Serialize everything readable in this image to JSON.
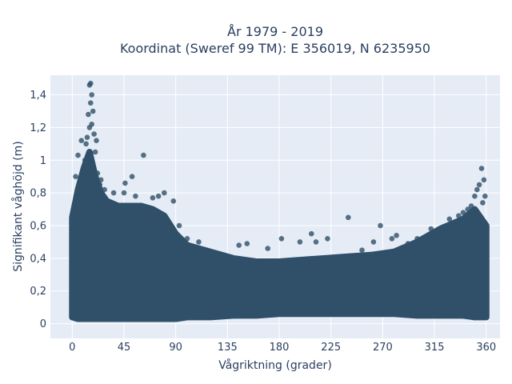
{
  "title_line1": "År 1979 - 2019",
  "title_line2": "Koordinat (Sweref 99 TM): E 356019, N 6235950",
  "xlabel": "Vågriktning (grader)",
  "ylabel": "Signifikant våghöjd (m)",
  "colors": {
    "plot_bg": "#e5ecf6",
    "grid": "#ffffff",
    "marker": "#2f5068",
    "text": "#2a3f5f"
  },
  "chart_data": {
    "type": "scatter",
    "title": "År 1979 - 2019 / Koordinat (Sweref 99 TM): E 356019, N 6235950",
    "xlabel": "Vågriktning (grader)",
    "ylabel": "Signifikant våghöjd (m)",
    "xlim": [
      -19,
      372
    ],
    "ylim": [
      -0.09,
      1.52
    ],
    "grid": true,
    "legend": "none",
    "x_ticks": [
      0,
      45,
      90,
      135,
      180,
      225,
      270,
      315,
      360
    ],
    "x_tick_labels": [
      "0",
      "45",
      "90",
      "135",
      "180",
      "225",
      "270",
      "315",
      "360"
    ],
    "y_ticks": [
      0,
      0.2,
      0.4,
      0.6,
      0.8,
      1.0,
      1.2,
      1.4
    ],
    "y_tick_labels": [
      "0",
      "0,2",
      "0,4",
      "0,6",
      "0,8",
      "1",
      "1,2",
      "1,4"
    ],
    "series": [
      {
        "density_envelope": {
          "x": [
            0,
            5,
            10,
            15,
            20,
            25,
            30,
            40,
            50,
            60,
            70,
            80,
            90,
            100,
            120,
            140,
            160,
            180,
            200,
            220,
            240,
            260,
            280,
            300,
            320,
            340,
            350,
            360
          ],
          "y_min": [
            0.04,
            0.03,
            0.03,
            0.03,
            0.03,
            0.03,
            0.03,
            0.03,
            0.03,
            0.03,
            0.03,
            0.03,
            0.03,
            0.04,
            0.04,
            0.05,
            0.05,
            0.06,
            0.06,
            0.06,
            0.06,
            0.06,
            0.06,
            0.05,
            0.05,
            0.05,
            0.04,
            0.04
          ],
          "y_max": [
            0.65,
            0.82,
            0.95,
            1.05,
            0.9,
            0.8,
            0.75,
            0.72,
            0.72,
            0.72,
            0.7,
            0.66,
            0.55,
            0.48,
            0.44,
            0.4,
            0.38,
            0.38,
            0.39,
            0.4,
            0.41,
            0.42,
            0.44,
            0.5,
            0.58,
            0.64,
            0.7,
            0.6
          ]
        },
        "x": [
          16,
          15,
          17,
          16,
          18,
          14,
          17,
          15,
          19,
          13,
          21,
          12,
          8,
          5,
          3,
          11,
          20,
          22,
          25,
          28,
          24,
          26,
          33,
          36,
          38,
          45,
          46,
          55,
          62,
          70,
          75,
          52,
          80,
          88,
          93,
          100,
          110,
          145,
          152,
          170,
          182,
          198,
          208,
          212,
          222,
          240,
          252,
          262,
          268,
          278,
          282,
          292,
          300,
          308,
          312,
          318,
          322,
          328,
          333,
          336,
          340,
          344,
          347,
          350,
          352,
          354,
          356,
          358,
          359,
          357
        ],
        "y": [
          1.47,
          1.46,
          1.4,
          1.35,
          1.3,
          1.28,
          1.22,
          1.2,
          1.16,
          1.14,
          1.12,
          1.1,
          1.12,
          1.03,
          0.9,
          1.0,
          1.05,
          0.92,
          0.88,
          0.82,
          0.85,
          0.78,
          0.74,
          0.8,
          0.73,
          0.8,
          0.86,
          0.78,
          1.03,
          0.77,
          0.78,
          0.9,
          0.8,
          0.75,
          0.6,
          0.52,
          0.5,
          0.48,
          0.49,
          0.46,
          0.52,
          0.5,
          0.55,
          0.5,
          0.52,
          0.65,
          0.45,
          0.5,
          0.6,
          0.52,
          0.54,
          0.49,
          0.52,
          0.49,
          0.58,
          0.55,
          0.59,
          0.64,
          0.62,
          0.66,
          0.68,
          0.7,
          0.72,
          0.78,
          0.82,
          0.85,
          0.95,
          0.88,
          0.78,
          0.74
        ]
      }
    ]
  }
}
